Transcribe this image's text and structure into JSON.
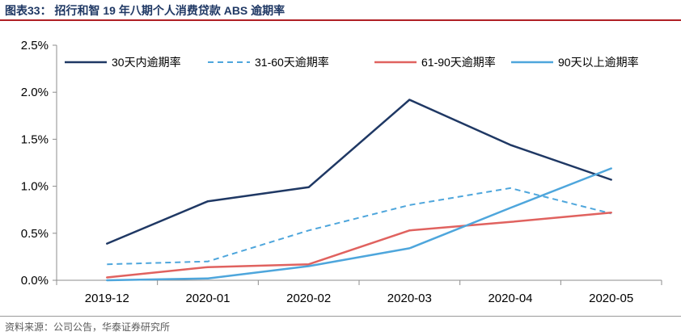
{
  "figure": {
    "title": "图表33： 招行和智 19 年八期个人消费贷款 ABS 逾期率",
    "source": "资料来源：公司公告，华泰证券研究所"
  },
  "colors": {
    "title": "#1f3864",
    "title_rule": "#b01f24"
  },
  "chart_data": {
    "type": "line",
    "title": "",
    "xlabel": "",
    "ylabel": "",
    "categories": [
      "2019-12",
      "2020-01",
      "2020-02",
      "2020-03",
      "2020-04",
      "2020-05"
    ],
    "ylim": [
      0,
      0.025
    ],
    "yticks": [
      "0.0%",
      "0.5%",
      "1.0%",
      "1.5%",
      "2.0%",
      "2.5%"
    ],
    "grid": false,
    "legend_position": "top",
    "series": [
      {
        "name": "30天内逾期率",
        "values": [
          0.0039,
          0.0084,
          0.0099,
          0.0192,
          0.0144,
          0.0107
        ],
        "color": "#1f3864",
        "dash": "solid"
      },
      {
        "name": "31-60天逾期率",
        "values": [
          0.0017,
          0.002,
          0.0053,
          0.008,
          0.0098,
          0.0071
        ],
        "color": "#4ea6dc",
        "dash": "dashed"
      },
      {
        "name": "61-90天逾期率",
        "values": [
          0.0003,
          0.0014,
          0.0017,
          0.0053,
          0.0062,
          0.0072
        ],
        "color": "#e0625f",
        "dash": "solid"
      },
      {
        "name": "90天以上逾期率",
        "values": [
          0.0,
          0.0002,
          0.0015,
          0.0034,
          0.0077,
          0.0119
        ],
        "color": "#4ea6dc",
        "dash": "solid"
      }
    ]
  }
}
